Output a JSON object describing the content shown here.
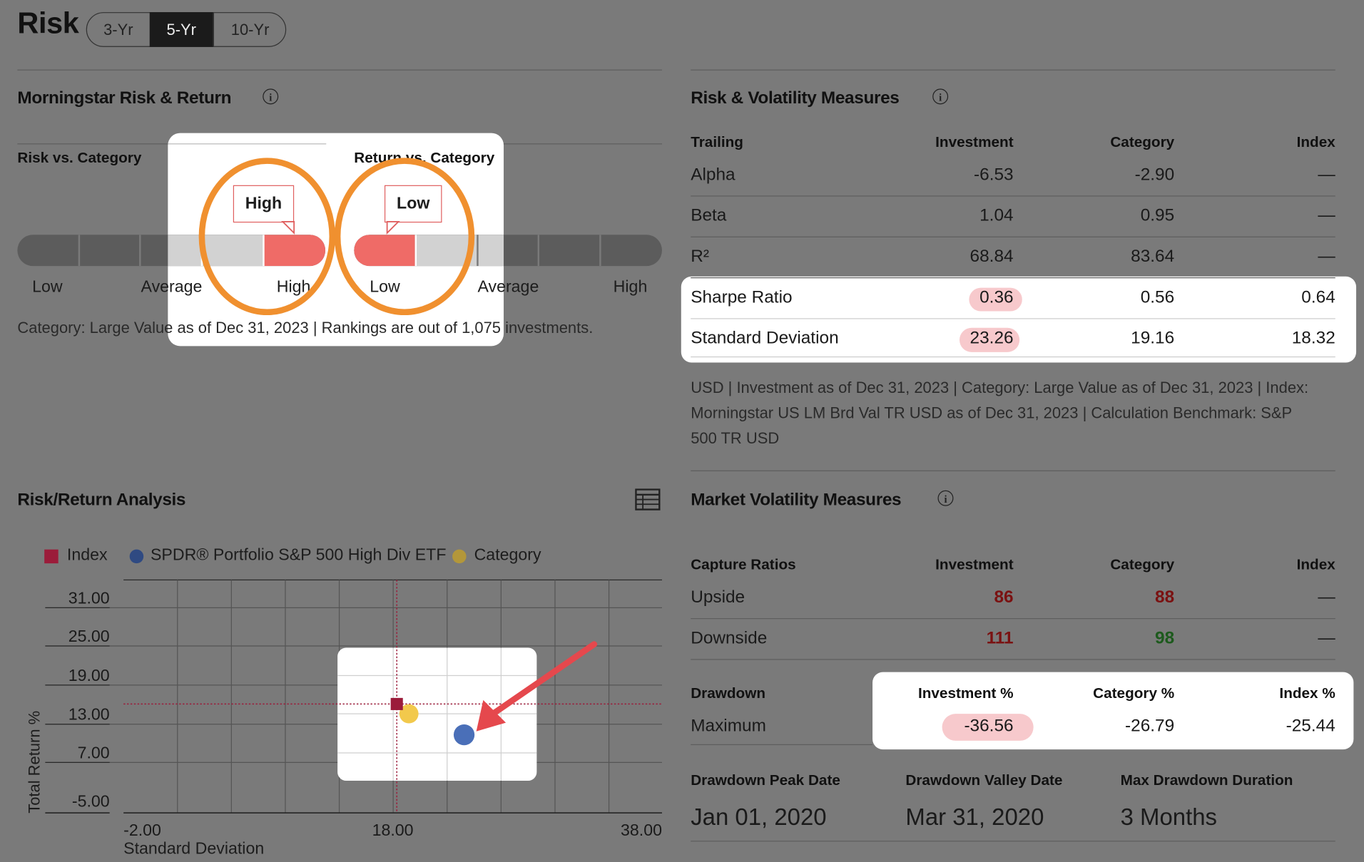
{
  "header": {
    "title": "Risk",
    "tabs": [
      {
        "label": "3-Yr",
        "active": false
      },
      {
        "label": "5-Yr",
        "active": true
      },
      {
        "label": "10-Yr",
        "active": false
      }
    ]
  },
  "risk_return": {
    "title": "Morningstar Risk & Return",
    "risk_label": "Risk vs. Category",
    "return_label": "Return vs. Category",
    "risk_value": "High",
    "return_value": "Low",
    "scale_risk": [
      "Low",
      "Average",
      "High"
    ],
    "scale_return": [
      "Low",
      "Average",
      "High"
    ],
    "footnote": "Category: Large Value as of Dec 31, 2023 | Rankings are out of 1,075 investments."
  },
  "volatility": {
    "title": "Risk & Volatility Measures",
    "columns": [
      "Trailing",
      "Investment",
      "Category",
      "Index"
    ],
    "rows": [
      {
        "label": "Alpha",
        "investment": "-6.53",
        "category": "-2.90",
        "index": "—"
      },
      {
        "label": "Beta",
        "investment": "1.04",
        "category": "0.95",
        "index": "—"
      },
      {
        "label": "R²",
        "investment": "68.84",
        "category": "83.64",
        "index": "—"
      },
      {
        "label": "Sharpe Ratio",
        "investment": "0.36",
        "category": "0.56",
        "index": "0.64"
      },
      {
        "label": "Standard Deviation",
        "investment": "23.26",
        "category": "19.16",
        "index": "18.32"
      }
    ],
    "footnote_lines": [
      "USD | Investment as of Dec 31, 2023 | Category: Large Value as of Dec 31, 2023 | Index:",
      "Morningstar US LM Brd Val TR USD as of Dec 31, 2023 | Calculation Benchmark: S&P",
      "500 TR USD"
    ]
  },
  "analysis": {
    "title": "Risk/Return Analysis",
    "legend": [
      "Index",
      "SPDR® Portfolio S&P 500 High Div ETF",
      "Category"
    ],
    "ylabel": "Total Return %",
    "xlabel": "Standard Deviation"
  },
  "market": {
    "title": "Market Volatility Measures",
    "capture_columns": [
      "Capture Ratios",
      "Investment",
      "Category",
      "Index"
    ],
    "capture_rows": [
      {
        "label": "Upside",
        "investment": "86",
        "category": "88",
        "index": "—"
      },
      {
        "label": "Downside",
        "investment": "111",
        "category": "98",
        "index": "—"
      }
    ],
    "drawdown_columns": [
      "Drawdown",
      "Investment %",
      "Category %",
      "Index %"
    ],
    "drawdown_row": {
      "label": "Maximum",
      "investment": "-36.56",
      "category": "-26.79",
      "index": "-25.44"
    },
    "dates": [
      {
        "label": "Drawdown Peak Date",
        "value": "Jan 01, 2020"
      },
      {
        "label": "Drawdown Valley Date",
        "value": "Mar 31, 2020"
      },
      {
        "label": "Max Drawdown Duration",
        "value": "3 Months"
      }
    ]
  },
  "colors": {
    "background": "#7a7a7a",
    "highlight": "#ffffff",
    "meter_fill": "#ef6b67",
    "orange_ring": "#f0902f",
    "pink_mark": "#f7c9cc",
    "red_value": "#7a1111",
    "green_value": "#1d5a1d",
    "index_color": "#9b1c3a",
    "fund_color": "#4a6fb8",
    "category_color": "#f2c94c",
    "arrow": "#e5484d"
  },
  "chart_data": {
    "type": "scatter",
    "xlabel": "Standard Deviation",
    "ylabel": "Total Return %",
    "xlim": [
      -2,
      38
    ],
    "ylim": [
      -5,
      31
    ],
    "x_ticks": [
      "-2.00",
      "18.00",
      "38.00"
    ],
    "y_ticks": [
      "31.00",
      "25.00",
      "19.00",
      "13.00",
      "7.00",
      "-5.00"
    ],
    "series": [
      {
        "name": "Index",
        "x": 18.3,
        "y": 14.5
      },
      {
        "name": "SPDR® Portfolio S&P 500 High Div ETF",
        "x": 23.3,
        "y": 9.7
      },
      {
        "name": "Category",
        "x": 19.2,
        "y": 13.0
      }
    ]
  }
}
